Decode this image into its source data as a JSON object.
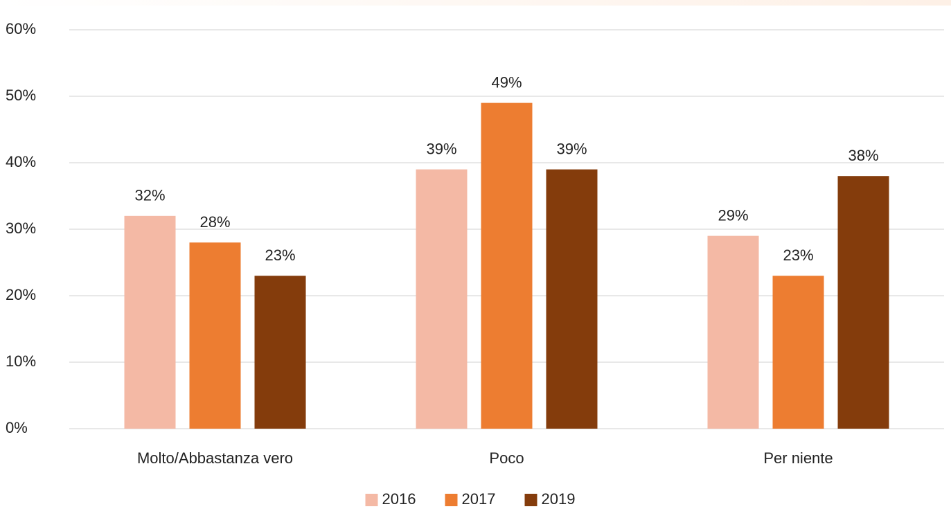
{
  "chart_data": {
    "type": "bar",
    "categories": [
      "Molto/Abbastanza vero",
      "Poco",
      "Per niente"
    ],
    "series": [
      {
        "name": "2016",
        "color": "#f4b9a5",
        "values": [
          32,
          39,
          29
        ],
        "value_labels": [
          "32%",
          "39%",
          "29%"
        ]
      },
      {
        "name": "2017",
        "color": "#ed7d31",
        "values": [
          28,
          49,
          23
        ],
        "value_labels": [
          "28%",
          "49%",
          "23%"
        ]
      },
      {
        "name": "2019",
        "color": "#843c0c",
        "values": [
          23,
          39,
          38
        ],
        "value_labels": [
          "23%",
          "39%",
          "38%"
        ]
      }
    ],
    "ylim": [
      0,
      60
    ],
    "yticks": [
      {
        "value": 0,
        "label": "0%"
      },
      {
        "value": 10,
        "label": "10%"
      },
      {
        "value": 20,
        "label": "20%"
      },
      {
        "value": 30,
        "label": "30%"
      },
      {
        "value": 40,
        "label": "40%"
      },
      {
        "value": 50,
        "label": "50%"
      },
      {
        "value": 60,
        "label": "60%"
      }
    ],
    "grid": true,
    "legend": "bottom"
  }
}
